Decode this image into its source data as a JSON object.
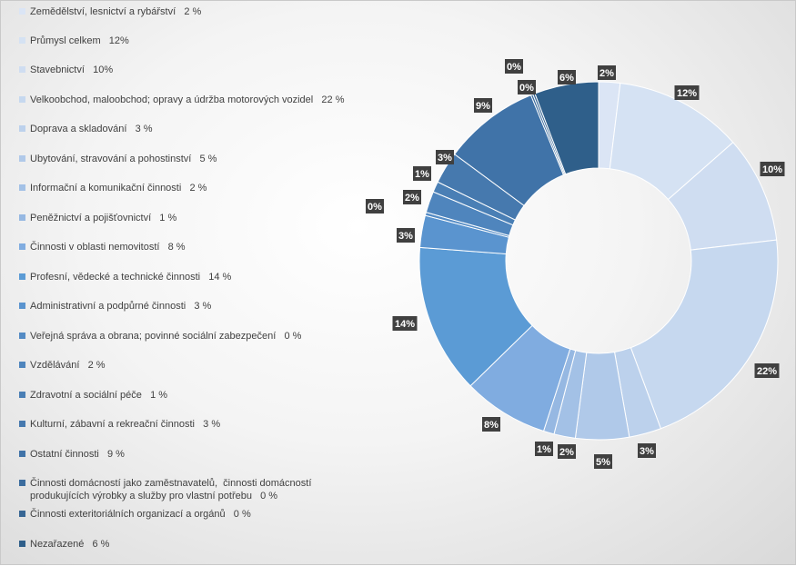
{
  "chart_data": {
    "type": "donut",
    "title": "",
    "legend_position": "left",
    "series": [
      {
        "legend": "Zemědělství, lesnictví a rybářství   2 %",
        "label": "2%",
        "value": 2,
        "color": "#dbe5f5"
      },
      {
        "legend": "Průmysl celkem   12%",
        "label": "12%",
        "value": 12,
        "color": "#d5e2f3"
      },
      {
        "legend": "Stavebnictví   10%",
        "label": "10%",
        "value": 10,
        "color": "#cfddf1"
      },
      {
        "legend": "Velkoobchod, maloobchod; opravy a údržba motorových vozidel   22 %",
        "label": "22%",
        "value": 22,
        "color": "#c6d8ef"
      },
      {
        "legend": "Doprava a skladování   3 %",
        "label": "3%",
        "value": 3,
        "color": "#bcd1ec"
      },
      {
        "legend": "Ubytování, stravování a pohostinství   5 %",
        "label": "5%",
        "value": 5,
        "color": "#b0c9e9"
      },
      {
        "legend": "Informační a komunikační činnosti   2 %",
        "label": "2%",
        "value": 2,
        "color": "#a3c1e6"
      },
      {
        "legend": "Peněžnictví a pojišťovnictví   1 %",
        "label": "1%",
        "value": 1,
        "color": "#96b8e2"
      },
      {
        "legend": "Činnosti v oblasti nemovitostí   8 %",
        "label": "8%",
        "value": 8,
        "color": "#80ace0"
      },
      {
        "legend": "Profesní, vědecké a technické činnosti   14 %",
        "label": "14%",
        "value": 14,
        "color": "#5b9bd5"
      },
      {
        "legend": "Administrativní a podpůrné činnosti   3 %",
        "label": "3%",
        "value": 3,
        "color": "#5a94cf"
      },
      {
        "legend": "Veřejná správa a obrana; povinné sociální zabezpečení   0 %",
        "label": "0%",
        "value": 0.3,
        "color": "#548bc4"
      },
      {
        "legend": "Vzdělávání   2 %",
        "label": "2%",
        "value": 2,
        "color": "#4f85bd"
      },
      {
        "legend": "Zdravotní a sociální péče   1 %",
        "label": "1%",
        "value": 1,
        "color": "#4a7fb5"
      },
      {
        "legend": "Kulturní, zábavní a rekreační činnosti   3 %",
        "label": "3%",
        "value": 3,
        "color": "#4679ae"
      },
      {
        "legend": "Ostatní činnosti   9 %",
        "label": "9%",
        "value": 9,
        "color": "#4073a8"
      },
      {
        "legend": "Činnosti domácností jako zaměstnavatelů,  činnosti domácností\nprodukujících výrobky a služby pro vlastní potřebu   0 %",
        "label": "0%",
        "value": 0.2,
        "color": "#3b6c9e"
      },
      {
        "legend": "Činnosti exteritoriálních organizací a orgánů   0 %",
        "label": "0%",
        "value": 0.2,
        "color": "#376694"
      },
      {
        "legend": "Nezařazené   6 %",
        "label": "6%",
        "value": 6,
        "color": "#2f5f8a"
      }
    ]
  }
}
